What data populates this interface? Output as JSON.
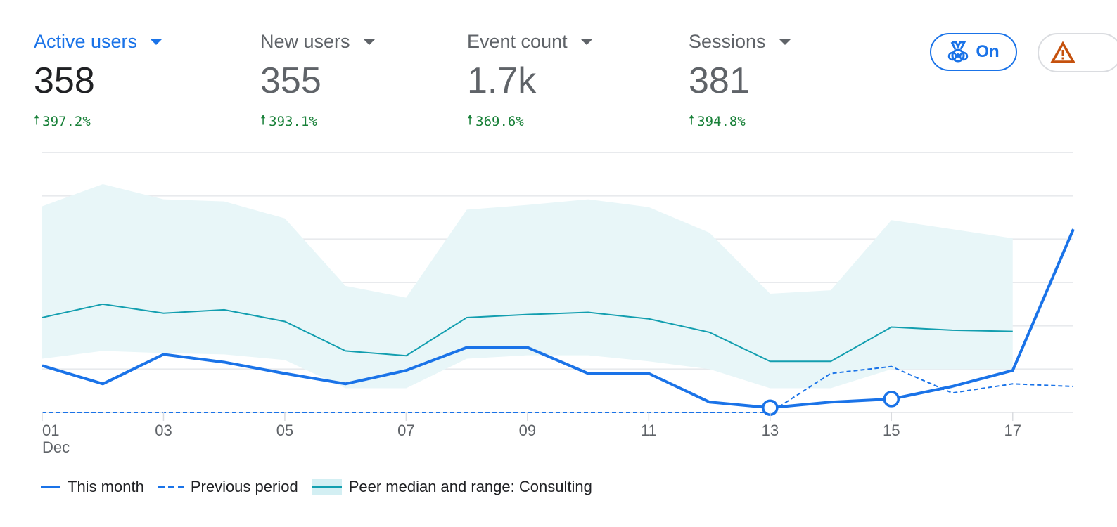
{
  "metrics": [
    {
      "label": "Active users",
      "value": "358",
      "change": "397.2%",
      "active": true
    },
    {
      "label": "New users",
      "value": "355",
      "change": "393.1%",
      "active": false
    },
    {
      "label": "Event count",
      "value": "1.7k",
      "change": "369.6%",
      "active": false
    },
    {
      "label": "Sessions",
      "value": "381",
      "change": "394.8%",
      "active": false
    }
  ],
  "toolbar": {
    "benchmark_label": "On",
    "benchmark_icon": "medal-icon",
    "warning_icon": "warning-triangle-icon"
  },
  "colors": {
    "accent": "#1a73e8",
    "positive": "#188038",
    "peer": "#129eaf",
    "peer_band": "#e8f6f8",
    "warning": "#c5510d"
  },
  "chart_data": {
    "type": "line",
    "x": [
      "01",
      "02",
      "03",
      "04",
      "05",
      "06",
      "07",
      "08",
      "09",
      "10",
      "11",
      "12",
      "13",
      "14",
      "15",
      "16",
      "17",
      "18"
    ],
    "x_tick_labels": [
      "01",
      "03",
      "05",
      "07",
      "09",
      "11",
      "13",
      "15",
      "17"
    ],
    "x_sublabel": "Dec",
    "ylim": [
      0,
      6
    ],
    "grid": true,
    "legend_position": "bottom-left",
    "series": [
      {
        "name": "This month",
        "style": "solid",
        "color": "#1a73e8",
        "values": [
          1.08,
          0.66,
          1.34,
          1.16,
          0.9,
          0.66,
          0.97,
          1.5,
          1.5,
          0.9,
          0.9,
          0.24,
          0.11,
          0.24,
          0.31,
          0.6,
          0.97,
          4.23
        ],
        "markers": [
          "13",
          "15"
        ]
      },
      {
        "name": "Previous period",
        "style": "dashed",
        "color": "#1a73e8",
        "values": [
          0,
          0,
          0,
          0,
          0,
          0,
          0,
          0,
          0,
          0,
          0,
          0,
          0,
          0.9,
          1.06,
          0.45,
          0.66,
          0.6
        ]
      },
      {
        "name": "Peer median and range: Consulting",
        "style": "median-band",
        "color": "#129eaf",
        "median": [
          2.19,
          2.5,
          2.29,
          2.37,
          2.1,
          1.42,
          1.31,
          2.19,
          2.26,
          2.31,
          2.16,
          1.85,
          1.18,
          1.18,
          1.97,
          1.9,
          1.87
        ],
        "upper": [
          4.76,
          5.27,
          4.92,
          4.87,
          4.48,
          2.92,
          2.65,
          4.68,
          4.79,
          4.92,
          4.74,
          4.15,
          2.74,
          2.82,
          4.44,
          4.23,
          4.02
        ],
        "lower": [
          1.24,
          1.42,
          1.37,
          1.34,
          1.21,
          0.56,
          0.56,
          1.24,
          1.32,
          1.32,
          1.18,
          1.0,
          0.56,
          0.56,
          1.0,
          1.0,
          1.0
        ]
      }
    ]
  }
}
